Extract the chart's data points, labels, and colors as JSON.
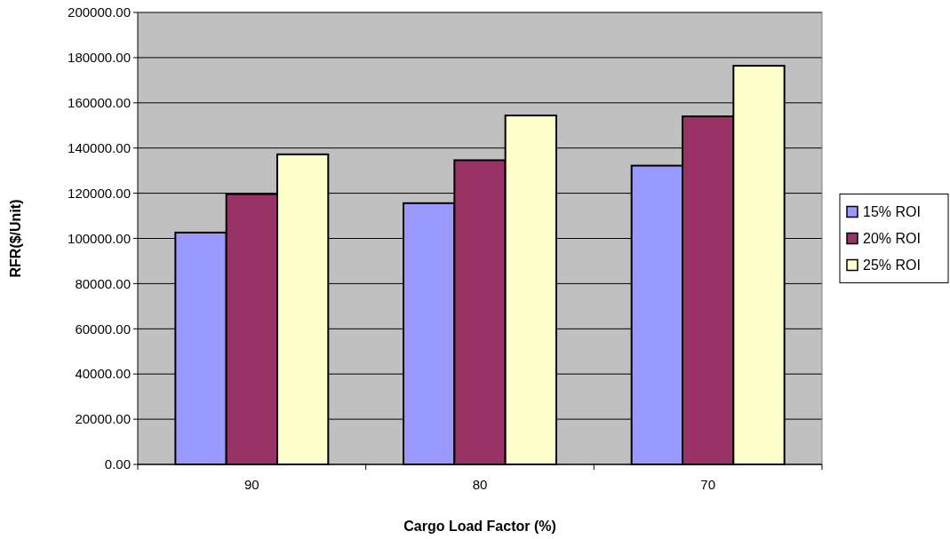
{
  "chart_data": {
    "type": "bar",
    "xlabel": "Cargo Load Factor (%)",
    "ylabel": "RFR($/Unit)",
    "categories": [
      "90",
      "80",
      "70"
    ],
    "series": [
      {
        "name": "15% ROI",
        "color": "#9999ff",
        "values": [
          102600,
          115600,
          132200
        ]
      },
      {
        "name": "20% ROI",
        "color": "#993366",
        "values": [
          119600,
          134600,
          154000
        ]
      },
      {
        "name": "25% ROI",
        "color": "#ffffcc",
        "values": [
          137200,
          154400,
          176400
        ]
      }
    ],
    "ylim": [
      0,
      200000
    ],
    "yticks": [
      {
        "value": 0,
        "label": "0.00"
      },
      {
        "value": 20000,
        "label": "20000.00"
      },
      {
        "value": 40000,
        "label": "40000.00"
      },
      {
        "value": 60000,
        "label": "60000.00"
      },
      {
        "value": 80000,
        "label": "80000.00"
      },
      {
        "value": 100000,
        "label": "100000.00"
      },
      {
        "value": 120000,
        "label": "120000.00"
      },
      {
        "value": 140000,
        "label": "140000.00"
      },
      {
        "value": 160000,
        "label": "160000.00"
      },
      {
        "value": 180000,
        "label": "180000.00"
      },
      {
        "value": 200000,
        "label": "200000.00"
      }
    ],
    "grid": "y",
    "legend": "right"
  }
}
